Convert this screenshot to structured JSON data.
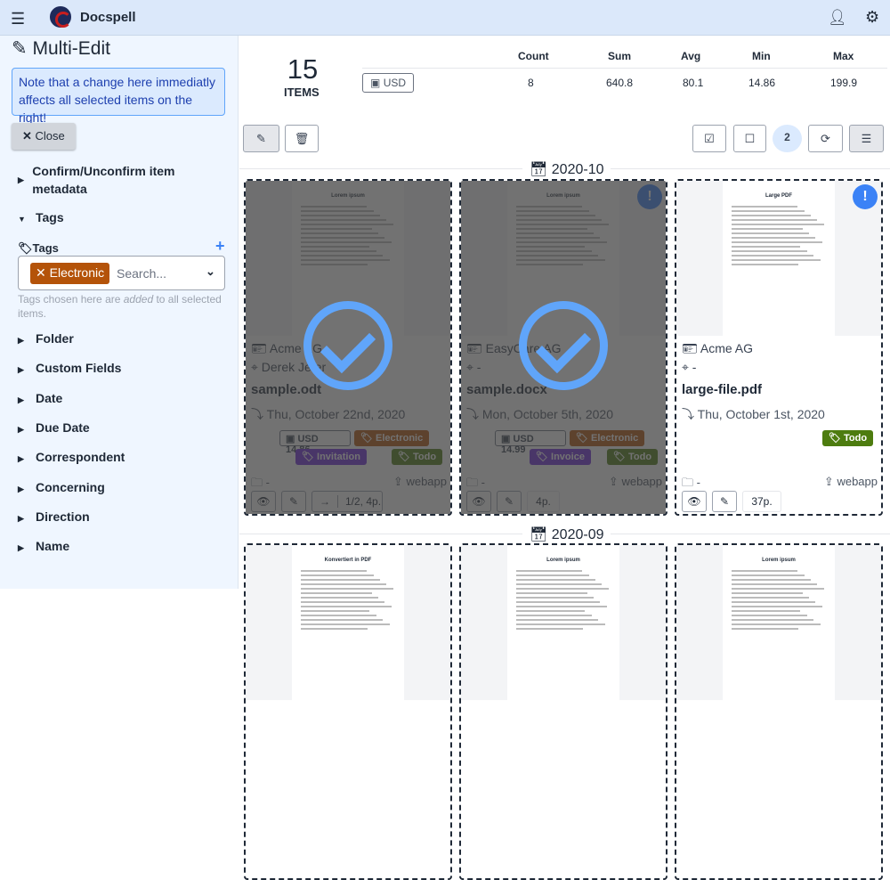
{
  "header": {
    "brand": "Docspell",
    "menu_icon": "menu-icon",
    "user_icon": "user-icon",
    "settings_icon": "gear-icon"
  },
  "sidebar": {
    "title": "Multi-Edit",
    "note": "Note that a change here immediatly affects all selected items on the right!",
    "close_label": "Close",
    "sections": [
      "Confirm/Unconfirm item metadata",
      "Tags",
      "Folder",
      "Custom Fields",
      "Date",
      "Due Date",
      "Correspondent",
      "Concerning",
      "Direction",
      "Name"
    ],
    "tags": {
      "label": "Tags",
      "selected": "Electronic",
      "placeholder": "Search...",
      "hint_pre": "Tags chosen here are ",
      "hint_em": "added",
      "hint_post": " to all selected items.",
      "selected_color": "#b45309"
    }
  },
  "summary": {
    "count": "15",
    "items_label": "ITEMS",
    "currency": "USD",
    "headers": [
      "Count",
      "Sum",
      "Avg",
      "Min",
      "Max"
    ],
    "values": [
      "8",
      "640.8",
      "80.1",
      "14.86",
      "199.9"
    ]
  },
  "toolbar": {
    "selected_count": "2"
  },
  "groups": [
    {
      "label": "2020-10"
    },
    {
      "label": "2020-09"
    }
  ],
  "cards": [
    {
      "preview_title": "Lorem ipsum",
      "correspondent": "Acme AG",
      "concerning": "Derek Jeter",
      "name": "sample.odt",
      "date": "Thu, October 22nd, 2020",
      "amount": "USD  14.86",
      "tags": [
        {
          "label": "Electronic",
          "color": "#b45309"
        },
        {
          "label": "Invitation",
          "color": "#6d28d9"
        },
        {
          "label": "Todo",
          "color": "#4d7c0f"
        }
      ],
      "folder": "-",
      "source": "webapp",
      "pages": "1/2, 4p.",
      "selected": true,
      "new": false
    },
    {
      "preview_title": "Lorem ipsum",
      "correspondent": "EasyCare AG",
      "concerning": "-",
      "name": "sample.docx",
      "date": "Mon, October 5th, 2020",
      "amount": "USD  14.99",
      "tags": [
        {
          "label": "Electronic",
          "color": "#b45309"
        },
        {
          "label": "Invoice",
          "color": "#6d28d9"
        },
        {
          "label": "Todo",
          "color": "#4d7c0f"
        }
      ],
      "folder": "-",
      "source": "webapp",
      "pages": "4p.",
      "selected": true,
      "new": true
    },
    {
      "preview_title": "Large PDF",
      "correspondent": "Acme AG",
      "concerning": "-",
      "name": "large-file.pdf",
      "date": "Thu, October 1st, 2020",
      "amount": "",
      "tags": [
        {
          "label": "Todo",
          "color": "#4d7c0f"
        }
      ],
      "folder": "-",
      "source": "webapp",
      "pages": "37p.",
      "selected": false,
      "new": true
    }
  ],
  "next_cards": [
    {
      "preview_title": "Konvertiert in PDF"
    },
    {
      "preview_title": "Lorem ipsum"
    },
    {
      "preview_title": "Lorem ipsum"
    }
  ]
}
